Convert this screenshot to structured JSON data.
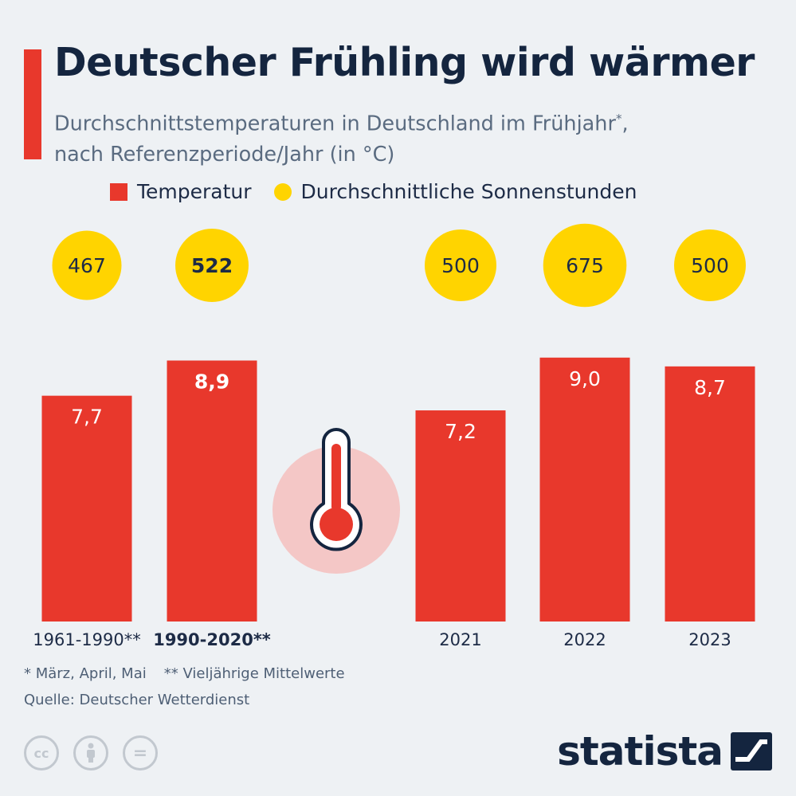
{
  "title": "Deutscher Frühling wird wärmer",
  "subtitle_line1": "Durchschnittstemperaturen in Deutschland im Frühjahr",
  "subtitle_sup": "*",
  "subtitle_comma": ",",
  "subtitle_line2": "nach Referenzperiode/Jahr (in °C)",
  "legend": {
    "temperature": "Temperatur",
    "sunshine": "Durchschnittliche Sonnenstunden"
  },
  "colors": {
    "bar": "#e8382c",
    "bubble": "#ffd400",
    "thermo_bg": "#f4c7c6",
    "navy": "#14253f"
  },
  "chart_data": {
    "type": "bar",
    "categories": [
      "1961-1990**",
      "1990-2020**",
      "2021",
      "2022",
      "2023"
    ],
    "series": [
      {
        "name": "Temperatur",
        "values": [
          7.7,
          8.9,
          7.2,
          9.0,
          8.7
        ],
        "labels": [
          "7,7",
          "8,9",
          "7,2",
          "9,0",
          "8,7"
        ]
      },
      {
        "name": "Durchschnittliche Sonnenstunden",
        "values": [
          467,
          522,
          500,
          675,
          500
        ],
        "labels": [
          "467",
          "522",
          "500",
          "675",
          "500"
        ]
      }
    ],
    "highlight_index": 1,
    "ylim": [
      0,
      9.5
    ]
  },
  "footnote_1": "* März, April, Mai",
  "footnote_2": "** Vieljährige Mittelwerte",
  "source": "Quelle: Deutscher Wetterdienst",
  "license_icons": [
    "cc-icon",
    "by-icon",
    "nd-icon"
  ],
  "license_labels": {
    "cc": "cc",
    "nd": "="
  },
  "brand": "statista"
}
